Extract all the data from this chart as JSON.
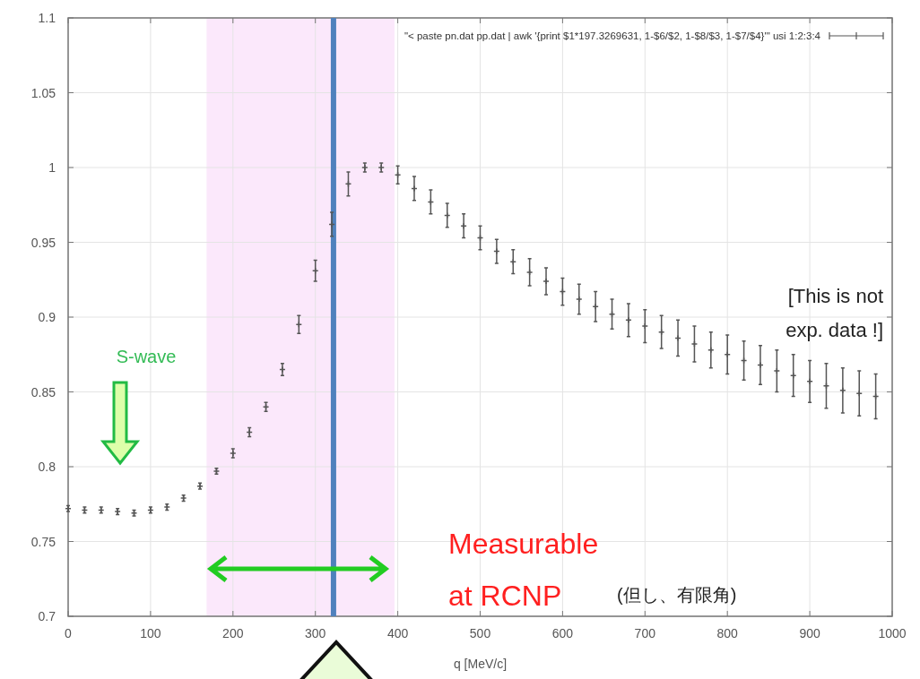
{
  "chart_data": {
    "type": "scatter",
    "xlabel": "q [MeV/c]",
    "x": [
      0,
      20,
      40,
      60,
      80,
      100,
      120,
      140,
      160,
      180,
      200,
      220,
      240,
      260,
      280,
      300,
      320,
      340,
      360,
      380,
      400,
      420,
      440,
      460,
      480,
      500,
      520,
      540,
      560,
      580,
      600,
      620,
      640,
      660,
      680,
      700,
      720,
      740,
      760,
      780,
      800,
      820,
      840,
      860,
      880,
      900,
      920,
      940,
      960,
      980
    ],
    "series": [
      {
        "name": "\"< paste pn.dat pp.dat | awk '{print $1*197.3269631, 1-$6/$2, 1-$8/$3, 1-$7/$4}'\" usi 1:2:3:4",
        "color": "#555555",
        "values": [
          0.772,
          0.771,
          0.771,
          0.77,
          0.769,
          0.771,
          0.773,
          0.779,
          0.787,
          0.797,
          0.809,
          0.823,
          0.84,
          0.865,
          0.895,
          0.931,
          0.962,
          0.989,
          1.0,
          1.0,
          0.995,
          0.986,
          0.977,
          0.968,
          0.961,
          0.953,
          0.944,
          0.937,
          0.93,
          0.924,
          0.917,
          0.912,
          0.907,
          0.902,
          0.898,
          0.894,
          0.89,
          0.886,
          0.882,
          0.878,
          0.875,
          0.871,
          0.868,
          0.864,
          0.861,
          0.857,
          0.854,
          0.851,
          0.849,
          0.847
        ],
        "errors": [
          0.002,
          0.002,
          0.002,
          0.002,
          0.002,
          0.002,
          0.002,
          0.002,
          0.002,
          0.002,
          0.003,
          0.003,
          0.003,
          0.004,
          0.006,
          0.007,
          0.008,
          0.008,
          0.003,
          0.003,
          0.006,
          0.008,
          0.008,
          0.008,
          0.008,
          0.008,
          0.008,
          0.008,
          0.009,
          0.009,
          0.009,
          0.01,
          0.01,
          0.01,
          0.011,
          0.011,
          0.011,
          0.012,
          0.012,
          0.012,
          0.013,
          0.013,
          0.013,
          0.014,
          0.014,
          0.014,
          0.015,
          0.015,
          0.015,
          0.015
        ]
      }
    ],
    "xlim": [
      0,
      1000
    ],
    "xticks": [
      0,
      100,
      200,
      300,
      400,
      500,
      600,
      700,
      800,
      900,
      1000
    ],
    "ylim": [
      0.7,
      1.1
    ],
    "yticks": [
      0.7,
      0.75,
      0.8,
      0.85,
      0.9,
      0.95,
      1,
      1.05,
      1.1
    ],
    "grid": true,
    "legend": "top right",
    "marker": "cross",
    "bands": [
      {
        "axis": "x",
        "from": 168,
        "to": 396,
        "color": "#fbe8fb"
      }
    ],
    "ref_lines": [
      {
        "axis": "x",
        "value": 322,
        "color": "#4f81bd"
      }
    ],
    "annotations": [
      "S-wave",
      "Measurable\nat RCNP",
      "(但し、有限角)",
      "[This is not\nexp. data !]"
    ]
  }
}
